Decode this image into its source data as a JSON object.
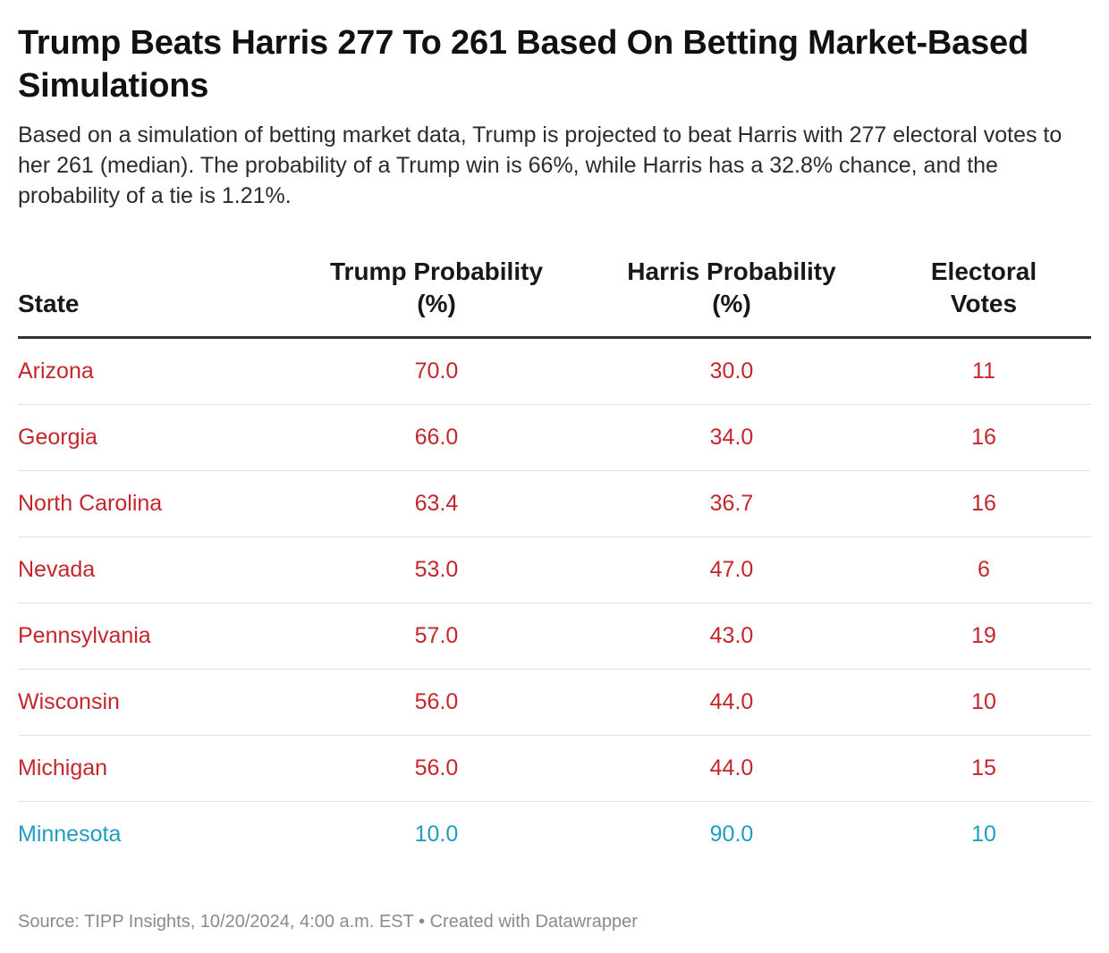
{
  "header": {
    "title": "Trump Beats Harris 277 To 261 Based On Betting Market-Based Simulations",
    "subtitle": "Based on a simulation of betting market data, Trump is projected to beat Harris with 277 electoral votes to her 261 (median). The probability of a Trump win is 66%, while Harris has a 32.8% chance, and the probability of a tie is 1.21%."
  },
  "table": {
    "columns": {
      "state": "State",
      "trump": "Trump Probability (%)",
      "harris": "Harris Probability (%)",
      "votes": "Electoral Votes"
    },
    "colors": {
      "trump_leaning": "#c4262b",
      "harris_leaning": "#1f9cc1"
    }
  },
  "footer": {
    "source": "Source: TIPP Insights, 10/20/2024, 4:00 a.m. EST • Created with Datawrapper"
  },
  "chart_data": {
    "type": "table",
    "title": "Trump Beats Harris 277 To 261 Based On Betting Market-Based Simulations",
    "columns": [
      "State",
      "Trump Probability (%)",
      "Harris Probability (%)",
      "Electoral Votes"
    ],
    "rows": [
      {
        "state": "Arizona",
        "trump": "70.0",
        "harris": "30.0",
        "votes": "11",
        "leaning": "trump"
      },
      {
        "state": "Georgia",
        "trump": "66.0",
        "harris": "34.0",
        "votes": "16",
        "leaning": "trump"
      },
      {
        "state": "North Carolina",
        "trump": "63.4",
        "harris": "36.7",
        "votes": "16",
        "leaning": "trump"
      },
      {
        "state": "Nevada",
        "trump": "53.0",
        "harris": "47.0",
        "votes": "6",
        "leaning": "trump"
      },
      {
        "state": "Pennsylvania",
        "trump": "57.0",
        "harris": "43.0",
        "votes": "19",
        "leaning": "trump"
      },
      {
        "state": "Wisconsin",
        "trump": "56.0",
        "harris": "44.0",
        "votes": "10",
        "leaning": "trump"
      },
      {
        "state": "Michigan",
        "trump": "56.0",
        "harris": "44.0",
        "votes": "15",
        "leaning": "trump"
      },
      {
        "state": "Minnesota",
        "trump": "10.0",
        "harris": "90.0",
        "votes": "10",
        "leaning": "harris"
      }
    ]
  }
}
